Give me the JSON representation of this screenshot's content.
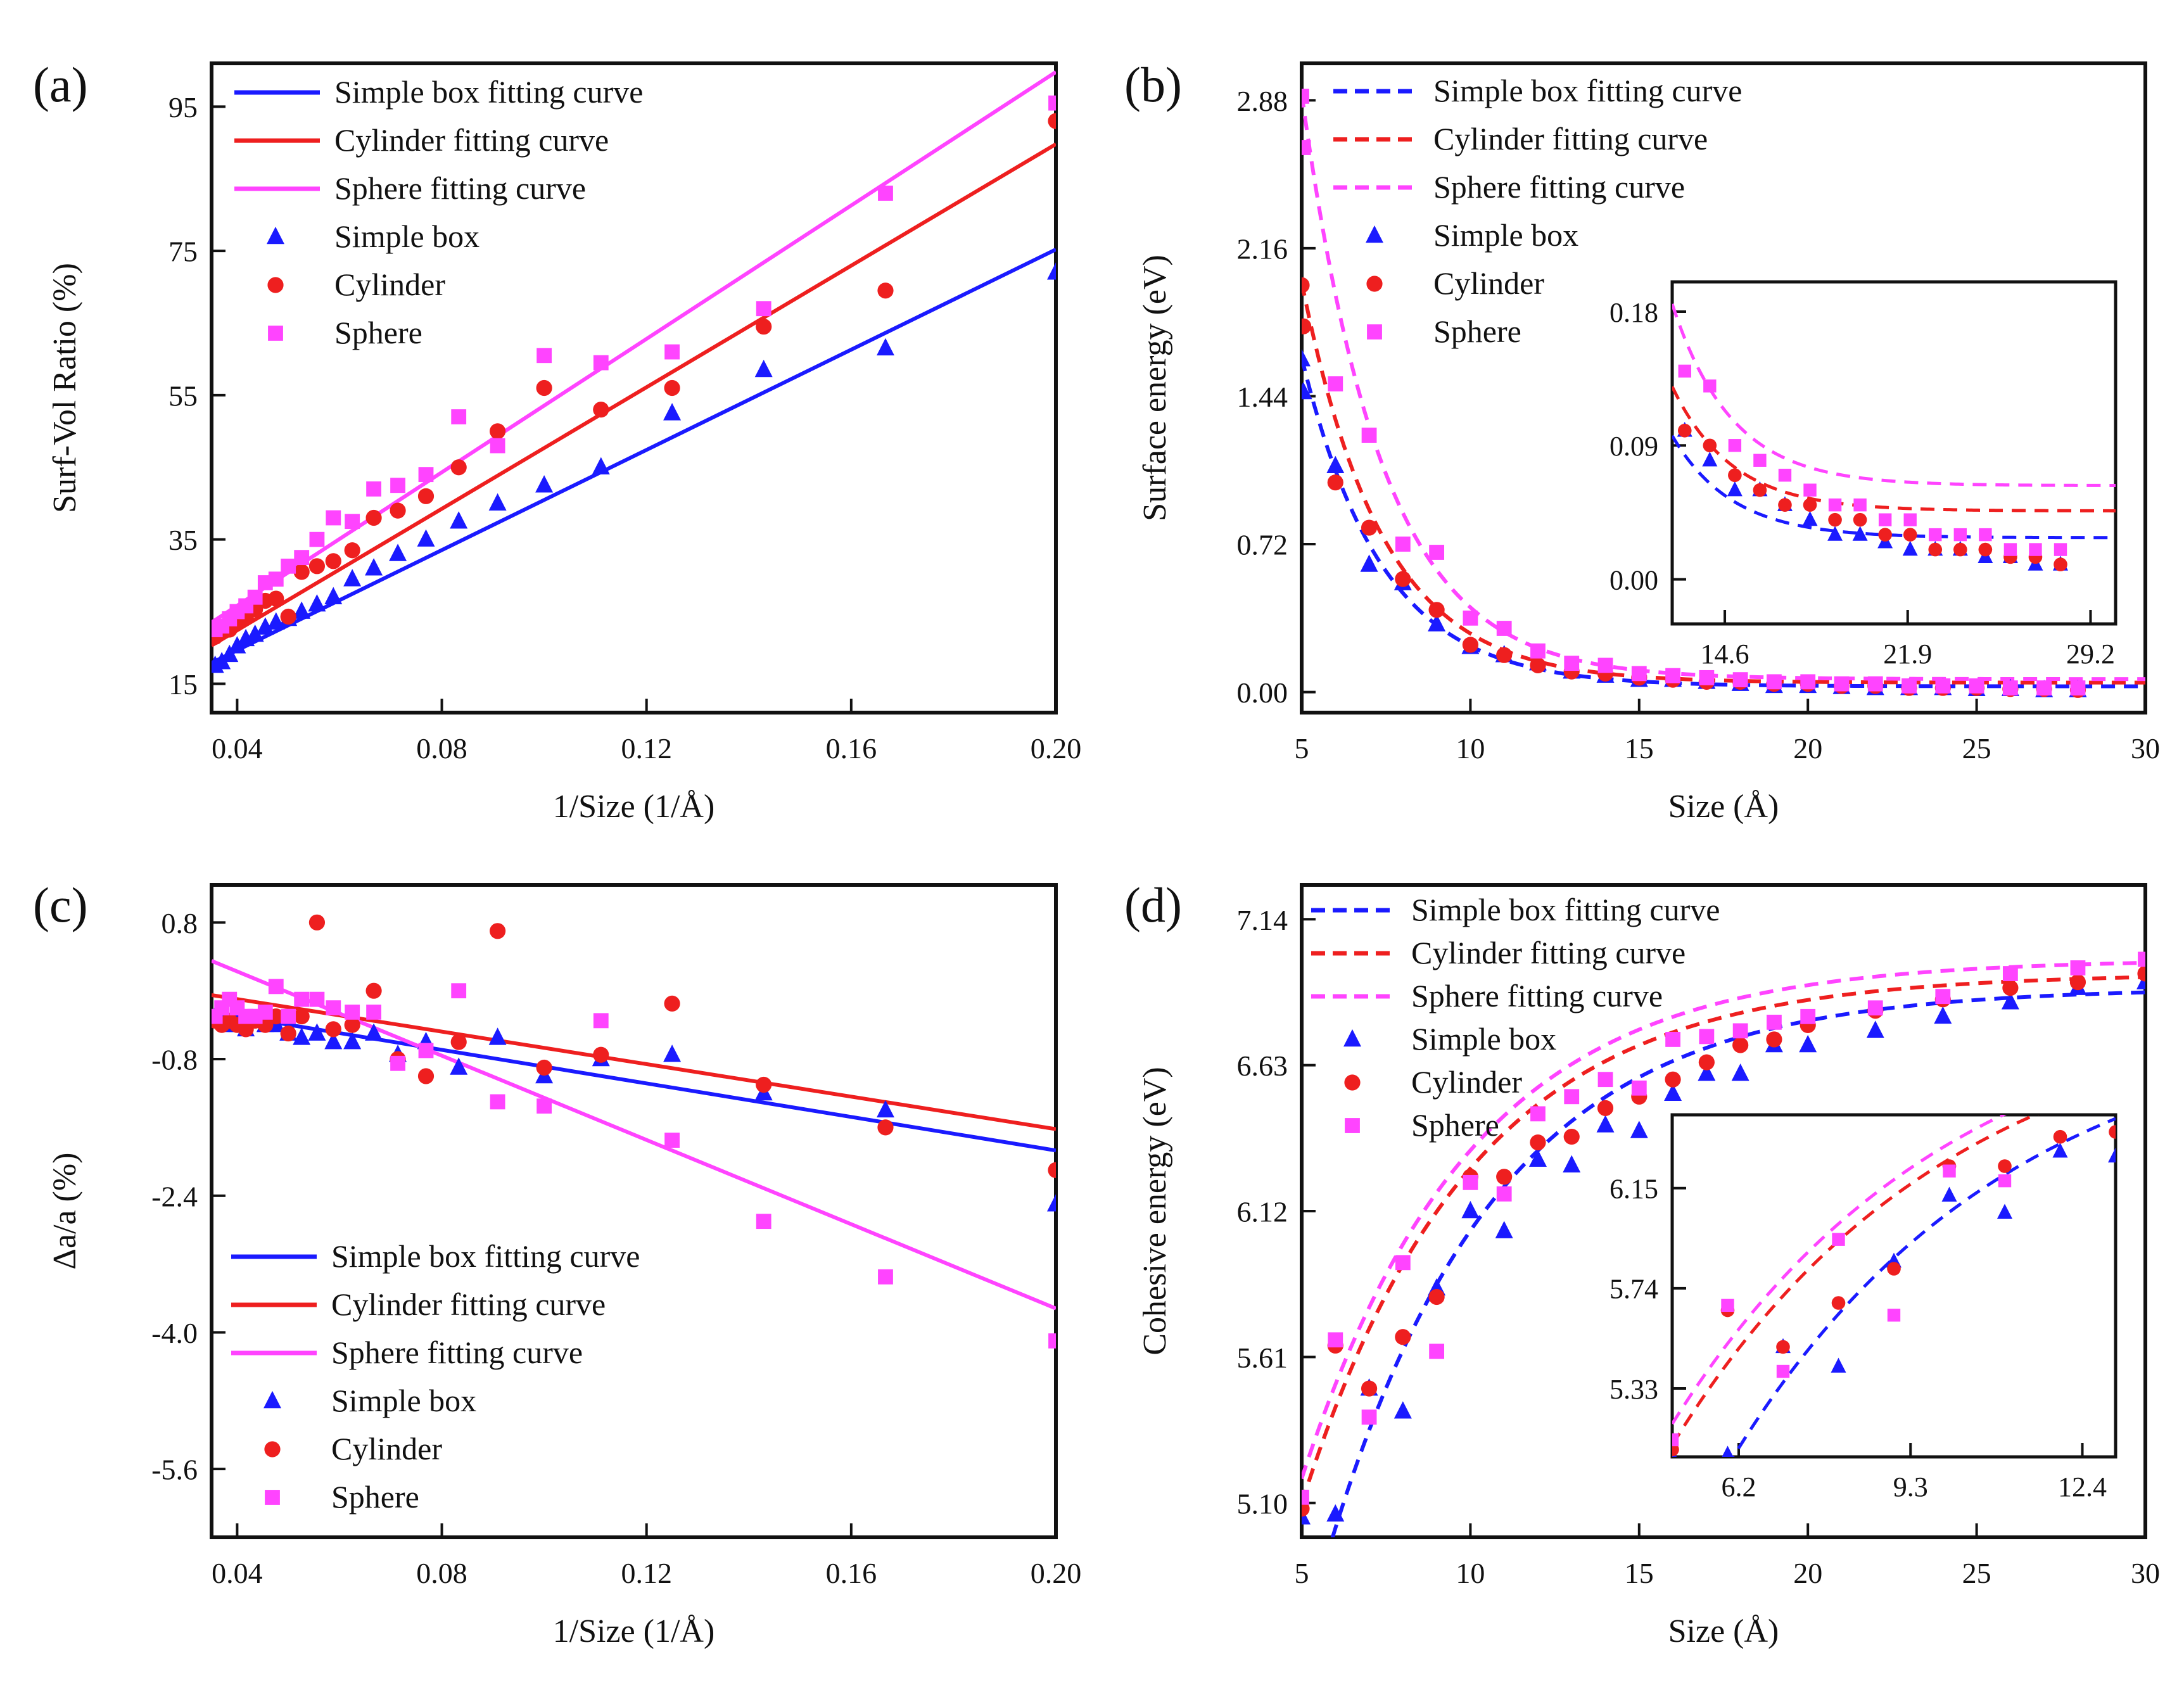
{
  "colors": {
    "blue": "#1a1aff",
    "red": "#ee1f1f",
    "magenta": "#ff44ff"
  },
  "chart_data": [
    {
      "type": "scatter",
      "panel_label": "(a)",
      "xlabel": "1/Size (1/Å)",
      "ylabel": "Surf-Vol Ratio (%)",
      "xlim": [
        0.035,
        0.2
      ],
      "ylim": [
        11,
        101
      ],
      "xticks": [
        "0.04",
        "0.08",
        "0.12",
        "0.16",
        "0.20"
      ],
      "yticks": [
        "15",
        "35",
        "55",
        "75",
        "95"
      ],
      "legend_position": "top-left",
      "legend": [
        "Simple box fitting curve",
        "Cylinder fitting curve",
        "Sphere fitting curve",
        "Simple box",
        "Cylinder",
        "Sphere"
      ],
      "fits": [
        {
          "name": "Simple box fitting curve",
          "style": "solid",
          "x": [
            0.035,
            0.2
          ],
          "y": [
            17.9,
            75.2
          ]
        },
        {
          "name": "Cylinder fitting curve",
          "style": "solid",
          "x": [
            0.035,
            0.2
          ],
          "y": [
            20.3,
            89.8
          ]
        },
        {
          "name": "Sphere fitting curve",
          "style": "solid",
          "x": [
            0.035,
            0.2
          ],
          "y": [
            23.5,
            99.8
          ]
        }
      ],
      "series": [
        {
          "name": "Simple box",
          "marker": "triangle",
          "x": [
            0.0357,
            0.037,
            0.0385,
            0.04,
            0.0417,
            0.0435,
            0.0455,
            0.0476,
            0.05,
            0.0526,
            0.0556,
            0.0588,
            0.0625,
            0.0667,
            0.0714,
            0.0769,
            0.0833,
            0.0909,
            0.1,
            0.1111,
            0.125,
            0.1429,
            0.1667,
            0.2
          ],
          "y": [
            17.5,
            18.0,
            19.0,
            20.2,
            21.2,
            21.8,
            22.8,
            23.5,
            24.0,
            25.0,
            26.0,
            27.0,
            29.5,
            31.0,
            33.0,
            35.0,
            37.5,
            40.0,
            42.5,
            45.0,
            52.5,
            58.5,
            61.5,
            72.0
          ]
        },
        {
          "name": "Cylinder",
          "marker": "circle",
          "x": [
            0.0357,
            0.037,
            0.0385,
            0.04,
            0.0417,
            0.0435,
            0.0455,
            0.0476,
            0.05,
            0.0526,
            0.0556,
            0.0588,
            0.0625,
            0.0667,
            0.0714,
            0.0769,
            0.0833,
            0.0909,
            0.1,
            0.1111,
            0.125,
            0.1429,
            0.1667,
            0.2
          ],
          "y": [
            21.5,
            22.3,
            22.5,
            23.5,
            24.2,
            25.3,
            26.5,
            26.8,
            24.3,
            30.5,
            31.3,
            32.0,
            33.5,
            38.0,
            39.0,
            41.0,
            45.0,
            50.0,
            56.0,
            53.0,
            56.0,
            64.5,
            69.5,
            93.0
          ]
        },
        {
          "name": "Sphere",
          "marker": "square",
          "x": [
            0.0357,
            0.037,
            0.0385,
            0.04,
            0.0417,
            0.0435,
            0.0455,
            0.0476,
            0.05,
            0.0526,
            0.0556,
            0.0588,
            0.0625,
            0.0667,
            0.0714,
            0.0769,
            0.0833,
            0.0909,
            0.1,
            0.1111,
            0.125,
            0.1429,
            0.1667,
            0.2
          ],
          "y": [
            22.5,
            23.0,
            24.0,
            25.0,
            25.8,
            27.0,
            29.0,
            29.5,
            31.3,
            32.5,
            35.0,
            38.0,
            37.5,
            42.0,
            42.5,
            44.0,
            52.0,
            48.0,
            60.5,
            59.5,
            61.0,
            67.0,
            83.0,
            95.5
          ]
        }
      ]
    },
    {
      "type": "scatter",
      "panel_label": "(b)",
      "xlabel": "Size (Å)",
      "ylabel": "Surface energy (eV)",
      "xlim": [
        5,
        30
      ],
      "ylim": [
        -0.1,
        3.06
      ],
      "xticks": [
        "5",
        "10",
        "15",
        "20",
        "25",
        "30"
      ],
      "yticks": [
        "0.00",
        "0.72",
        "1.44",
        "2.16",
        "2.88"
      ],
      "legend_position": "top-left",
      "legend": [
        "Simple box fitting curve",
        "Cylinder fitting curve",
        "Sphere fitting curve",
        "Simple box",
        "Cylinder",
        "Sphere"
      ],
      "fits": [
        {
          "name": "Simple box fitting curve",
          "style": "dashed",
          "model": "exp",
          "a": 1.6,
          "k": 0.42,
          "c": 0.028
        },
        {
          "name": "Cylinder fitting curve",
          "style": "dashed",
          "model": "exp",
          "a": 1.95,
          "k": 0.42,
          "c": 0.046
        },
        {
          "name": "Sphere fitting curve",
          "style": "dashed",
          "model": "exp",
          "a": 2.85,
          "k": 0.42,
          "c": 0.063
        }
      ],
      "series": [
        {
          "name": "Simple box",
          "marker": "triangle",
          "x": [
            5,
            5.05,
            6,
            7,
            8,
            9,
            10,
            11,
            12,
            13,
            14,
            15,
            16,
            17,
            18,
            19,
            20,
            21,
            22,
            23,
            24,
            25,
            26,
            27,
            28
          ],
          "y": [
            1.62,
            1.46,
            1.1,
            0.62,
            0.53,
            0.33,
            0.22,
            0.18,
            0.14,
            0.1,
            0.08,
            0.06,
            0.06,
            0.05,
            0.04,
            0.03,
            0.03,
            0.025,
            0.02,
            0.02,
            0.02,
            0.015,
            0.015,
            0.01,
            0.01
          ]
        },
        {
          "name": "Cylinder",
          "marker": "circle",
          "x": [
            5,
            5.05,
            6,
            7,
            8,
            9,
            10,
            11,
            12,
            13,
            14,
            15,
            16,
            17,
            18,
            19,
            20,
            21,
            22,
            23,
            24,
            25,
            26,
            27,
            28
          ],
          "y": [
            1.98,
            1.78,
            1.02,
            0.8,
            0.55,
            0.4,
            0.23,
            0.18,
            0.13,
            0.1,
            0.09,
            0.07,
            0.06,
            0.05,
            0.05,
            0.04,
            0.04,
            0.03,
            0.03,
            0.02,
            0.02,
            0.02,
            0.015,
            0.015,
            0.01
          ]
        },
        {
          "name": "Sphere",
          "marker": "square",
          "x": [
            5,
            5.05,
            6,
            7,
            8,
            9,
            10,
            11,
            12,
            13,
            14,
            15,
            16,
            17,
            18,
            19,
            20,
            21,
            22,
            23,
            24,
            25,
            26,
            27,
            28
          ],
          "y": [
            2.9,
            2.65,
            1.5,
            1.25,
            0.72,
            0.68,
            0.36,
            0.31,
            0.2,
            0.14,
            0.13,
            0.09,
            0.08,
            0.07,
            0.06,
            0.05,
            0.05,
            0.04,
            0.04,
            0.03,
            0.03,
            0.03,
            0.02,
            0.02,
            0.02
          ]
        }
      ],
      "inset": {
        "xlim": [
          12.5,
          30.2
        ],
        "ylim": [
          -0.03,
          0.2
        ],
        "xticks": [
          "14.6",
          "21.9",
          "29.2"
        ],
        "yticks": [
          "0.00",
          "0.09",
          "0.18"
        ]
      }
    },
    {
      "type": "scatter",
      "panel_label": "(c)",
      "xlabel": "1/Size (1/Å)",
      "ylabel": "Δa/a (%)",
      "xlim": [
        0.035,
        0.2
      ],
      "ylim": [
        -6.4,
        1.24
      ],
      "xticks": [
        "0.04",
        "0.08",
        "0.12",
        "0.16",
        "0.20"
      ],
      "yticks": [
        "0.8",
        "-0.8",
        "-2.4",
        "-4.0",
        "-5.6"
      ],
      "legend_position": "bottom-left",
      "legend": [
        "Simple box fitting curve",
        "Cylinder fitting curve",
        "Sphere fitting curve",
        "Simple box",
        "Cylinder",
        "Sphere"
      ],
      "fits": [
        {
          "name": "Simple box fitting curve",
          "style": "solid",
          "x": [
            0.035,
            0.2
          ],
          "y": [
            -0.25,
            -1.87
          ]
        },
        {
          "name": "Cylinder fitting curve",
          "style": "solid",
          "x": [
            0.035,
            0.2
          ],
          "y": [
            -0.05,
            -1.62
          ]
        },
        {
          "name": "Sphere fitting curve",
          "style": "solid",
          "x": [
            0.035,
            0.2
          ],
          "y": [
            0.35,
            -3.72
          ]
        }
      ],
      "series": [
        {
          "name": "Simple box",
          "marker": "triangle",
          "x": [
            0.0357,
            0.037,
            0.0385,
            0.04,
            0.0417,
            0.0435,
            0.0455,
            0.0476,
            0.05,
            0.0526,
            0.0556,
            0.0588,
            0.0625,
            0.0667,
            0.0714,
            0.0769,
            0.0833,
            0.0909,
            0.1,
            0.1111,
            0.125,
            0.1429,
            0.1667,
            0.2
          ],
          "y": [
            -0.3,
            -0.35,
            -0.4,
            -0.4,
            -0.45,
            -0.35,
            -0.4,
            -0.4,
            -0.5,
            -0.55,
            -0.5,
            -0.6,
            -0.6,
            -0.5,
            -0.75,
            -0.6,
            -0.9,
            -0.55,
            -1.0,
            -0.8,
            -0.75,
            -1.2,
            -1.4,
            -2.5
          ]
        },
        {
          "name": "Cylinder",
          "marker": "circle",
          "x": [
            0.0357,
            0.037,
            0.0385,
            0.04,
            0.0417,
            0.0435,
            0.0455,
            0.0476,
            0.05,
            0.0526,
            0.0556,
            0.0588,
            0.0625,
            0.0667,
            0.0714,
            0.0769,
            0.0833,
            0.0909,
            0.1,
            0.1111,
            0.125,
            0.1429,
            0.1667,
            0.2
          ],
          "y": [
            -0.35,
            -0.4,
            -0.35,
            -0.4,
            -0.45,
            -0.35,
            -0.4,
            -0.3,
            -0.5,
            -0.3,
            0.8,
            -0.45,
            -0.4,
            0.0,
            -0.8,
            -1.0,
            -0.6,
            0.7,
            -0.9,
            -0.75,
            -0.15,
            -1.1,
            -1.6,
            -2.1
          ]
        },
        {
          "name": "Sphere",
          "marker": "square",
          "x": [
            0.0357,
            0.037,
            0.0385,
            0.04,
            0.0417,
            0.0435,
            0.0455,
            0.0476,
            0.05,
            0.0526,
            0.0556,
            0.0588,
            0.0625,
            0.0667,
            0.0714,
            0.0769,
            0.0833,
            0.0909,
            0.1,
            0.1111,
            0.125,
            0.1429,
            0.1667,
            0.2
          ],
          "y": [
            -0.3,
            -0.2,
            -0.1,
            -0.2,
            -0.3,
            -0.3,
            -0.25,
            0.05,
            -0.3,
            -0.1,
            -0.1,
            -0.2,
            -0.25,
            -0.25,
            -0.85,
            -0.7,
            0.0,
            -1.3,
            -1.35,
            -0.35,
            -1.75,
            -2.7,
            -3.35,
            -4.1
          ]
        }
      ]
    },
    {
      "type": "scatter",
      "panel_label": "(d)",
      "xlabel": "Size (Å)",
      "ylabel": "Cohesive energy (eV)",
      "xlim": [
        5,
        30
      ],
      "ylim": [
        4.98,
        7.26
      ],
      "xticks": [
        "5",
        "10",
        "15",
        "20",
        "25",
        "30"
      ],
      "yticks": [
        "5.10",
        "5.61",
        "6.12",
        "6.63",
        "7.14"
      ],
      "legend_position": "top-left",
      "legend": [
        "Simple box fitting curve",
        "Cylinder fitting curve",
        "Sphere fitting curve",
        "Simple box",
        "Cylinder",
        "Sphere"
      ],
      "fits": [
        {
          "name": "Simple box fitting curve",
          "style": "dashed",
          "model": "exp-decay",
          "c": 6.9,
          "a": 2.6,
          "k": 0.2,
          "x0": 4.4
        },
        {
          "name": "Cylinder fitting curve",
          "style": "dashed",
          "model": "exp-decay",
          "c": 6.95,
          "a": 2.45,
          "k": 0.2,
          "x0": 3.6
        },
        {
          "name": "Sphere fitting curve",
          "style": "dashed",
          "model": "exp-decay",
          "c": 7.0,
          "a": 2.45,
          "k": 0.2,
          "x0": 3.5
        }
      ],
      "series": [
        {
          "name": "Simple box",
          "marker": "triangle",
          "x": [
            5,
            6,
            7,
            8,
            9,
            10,
            11,
            12,
            13,
            14,
            15,
            16,
            17,
            18,
            19,
            20,
            22,
            24,
            26,
            28,
            30
          ],
          "y": [
            5.05,
            5.06,
            5.5,
            5.42,
            5.85,
            6.12,
            6.05,
            6.3,
            6.28,
            6.42,
            6.4,
            6.53,
            6.6,
            6.6,
            6.7,
            6.7,
            6.75,
            6.8,
            6.85,
            6.9,
            6.92
          ]
        },
        {
          "name": "Cylinder",
          "marker": "circle",
          "x": [
            5,
            6,
            7,
            8,
            9,
            10,
            11,
            12,
            13,
            14,
            15,
            16,
            17,
            18,
            19,
            20,
            22,
            24,
            26,
            28,
            30
          ],
          "y": [
            5.08,
            5.65,
            5.5,
            5.68,
            5.82,
            6.24,
            6.24,
            6.36,
            6.38,
            6.48,
            6.52,
            6.58,
            6.64,
            6.7,
            6.72,
            6.77,
            6.82,
            6.86,
            6.9,
            6.92,
            6.95
          ]
        },
        {
          "name": "Sphere",
          "marker": "square",
          "x": [
            5,
            6,
            7,
            8,
            9,
            10,
            11,
            12,
            13,
            14,
            15,
            16,
            17,
            18,
            19,
            20,
            22,
            24,
            26,
            28,
            30
          ],
          "y": [
            5.12,
            5.67,
            5.4,
            5.94,
            5.63,
            6.22,
            6.18,
            6.46,
            6.52,
            6.58,
            6.55,
            6.72,
            6.73,
            6.75,
            6.78,
            6.8,
            6.83,
            6.87,
            6.95,
            6.97,
            7.0
          ]
        }
      ],
      "inset": {
        "xlim": [
          5,
          13
        ],
        "ylim": [
          5.05,
          6.45
        ],
        "xticks": [
          "6.2",
          "9.3",
          "12.4"
        ],
        "yticks": [
          "5.33",
          "5.74",
          "6.15"
        ]
      }
    }
  ]
}
